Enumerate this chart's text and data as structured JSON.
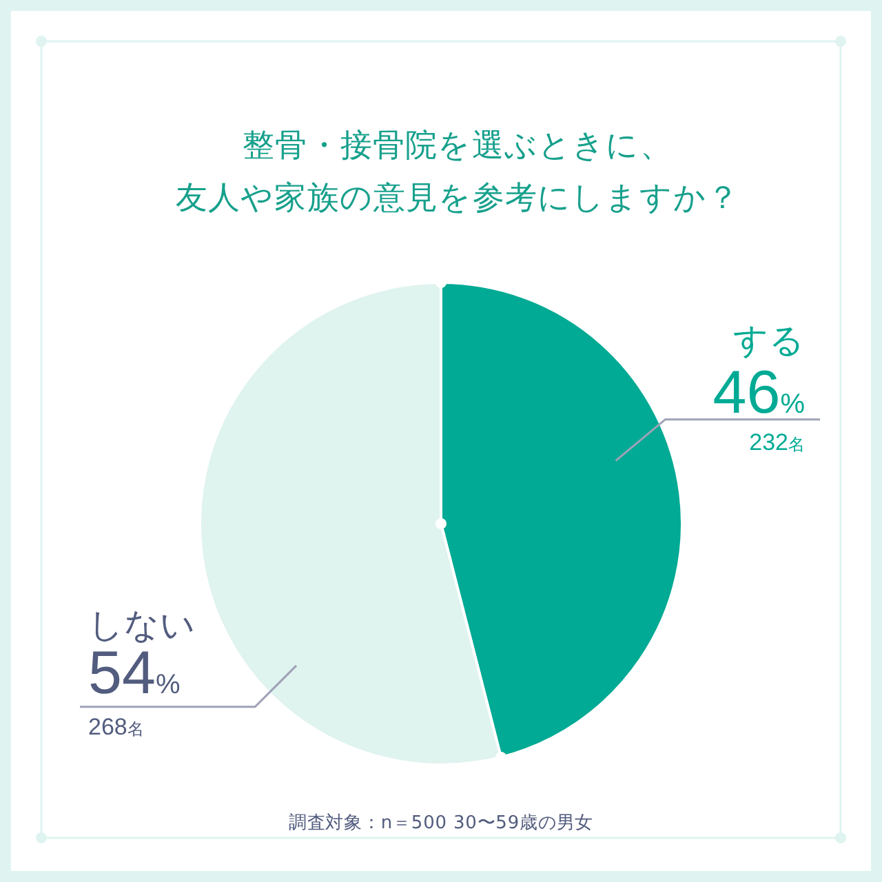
{
  "chart_data": {
    "type": "pie",
    "title": "整骨・接骨院を選ぶときに、友人や家族の意見を参考にしますか？",
    "categories": [
      "する",
      "しない"
    ],
    "values": [
      46,
      54
    ],
    "colors": [
      "#00aa94",
      "#dff3ef"
    ],
    "value_labels": [
      "46%",
      "54%"
    ],
    "annotations": [
      {
        "text": "232名",
        "x": "する"
      },
      {
        "text": "268名",
        "x": "しない"
      },
      "調査対象：n＝500 30〜59歳の男女"
    ]
  }
}
